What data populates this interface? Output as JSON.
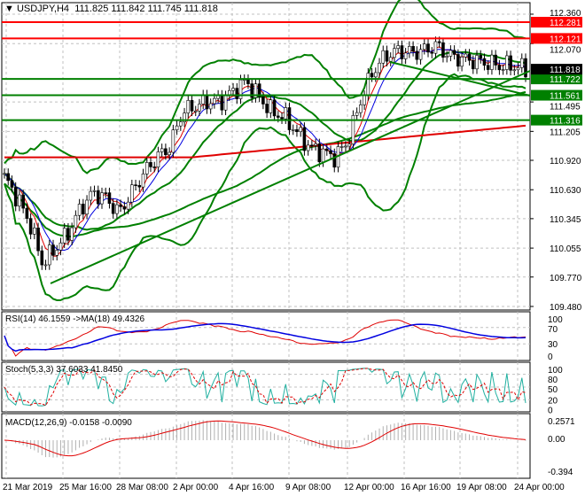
{
  "header": {
    "symbol": "USDJPY,H4",
    "ohlc": "111.825 111.842 111.745 111.818"
  },
  "colors": {
    "up_line": "#000000",
    "grid": "#c0c0c0",
    "resistance": "#ff0000",
    "support": "#008000",
    "bands": "#008000",
    "ma_long": "#e00000",
    "price_tag": "#000000"
  },
  "chart_data": [
    {
      "type": "candlestick",
      "title": "USDJPY,H4",
      "ylim": [
        109.48,
        112.36
      ],
      "yticks": [
        "112.360",
        "112.070",
        "111.495",
        "111.205",
        "110.920",
        "110.630",
        "110.345",
        "110.055",
        "109.770",
        "109.480"
      ],
      "xticks": [
        "21 Mar 2019",
        "25 Mar 16:00",
        "28 Mar 08:00",
        "2 Apr 00:00",
        "4 Apr 16:00",
        "9 Apr 08:00",
        "12 Apr 00:00",
        "16 Apr 16:00",
        "19 Apr 08:00",
        "24 Apr 00:00"
      ],
      "close_path": [
        110.75,
        110.55,
        110.3,
        109.9,
        110.05,
        110.2,
        110.45,
        110.6,
        110.55,
        110.4,
        110.6,
        110.8,
        110.95,
        111.05,
        111.4,
        111.45,
        111.5,
        111.5,
        111.6,
        111.7,
        111.55,
        111.4,
        111.35,
        111.2,
        111.05,
        111.0,
        110.95,
        111.1,
        111.5,
        111.8,
        111.95,
        112.0,
        111.98,
        112.0,
        112.05,
        111.95,
        111.92,
        111.9,
        111.88,
        111.85,
        111.85,
        111.82
      ],
      "horizontal_levels": [
        {
          "label": "112.281",
          "kind": "resistance"
        },
        {
          "label": "112.121",
          "kind": "resistance"
        },
        {
          "label": "111.722",
          "kind": "support"
        },
        {
          "label": "111.561",
          "kind": "support"
        },
        {
          "label": "111.316",
          "kind": "support"
        }
      ],
      "last_price": "111.818"
    },
    {
      "type": "line",
      "title": "RSI(14) 46.1559  ->MA(18) 49.4326",
      "yticks": [
        "100",
        "70",
        "30",
        "0"
      ],
      "ylim": [
        0,
        100
      ]
    },
    {
      "type": "line",
      "title": "Stoch(5,3,3) 37.6033 41.8450",
      "yticks": [
        "100",
        "80",
        "50",
        "20",
        "0"
      ],
      "ylim": [
        0,
        100
      ]
    },
    {
      "type": "histogram",
      "title": "MACD(12,26,9) -0.0158 -0.0090",
      "yticks": [
        "0.2571",
        "0.00",
        "-0.394"
      ],
      "ylim": [
        -0.394,
        0.2571
      ]
    }
  ]
}
